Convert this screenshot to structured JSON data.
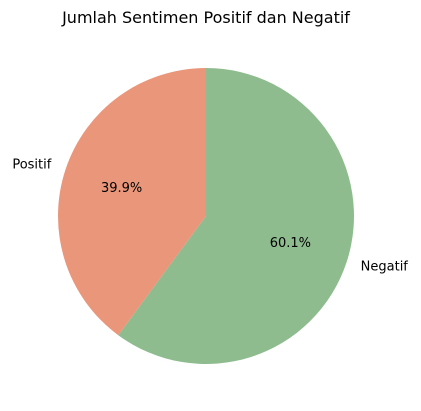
{
  "chart_data": {
    "type": "pie",
    "title": "Jumlah Sentimen Positif dan Negatif",
    "slices": [
      {
        "label": "Negatif",
        "value": 60.1,
        "pct_label": "60.1%",
        "color": "#8fbc8f"
      },
      {
        "label": "Positif",
        "value": 39.9,
        "pct_label": "39.9%",
        "color": "#e9967a"
      }
    ],
    "start_angle_deg": 90,
    "direction": "clockwise",
    "legend": false
  }
}
